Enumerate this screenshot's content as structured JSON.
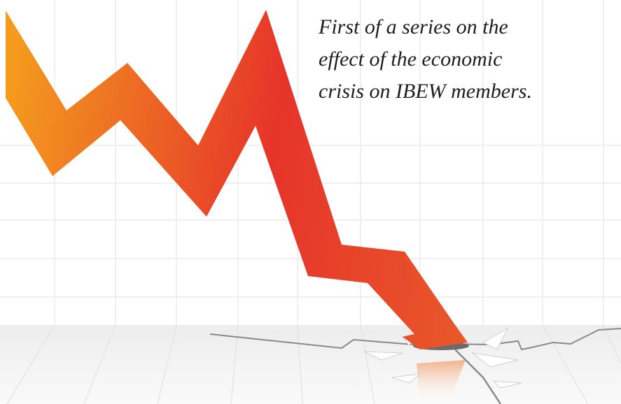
{
  "caption": {
    "lines": [
      "First of a series on the",
      "effect of the economic",
      "crisis on IBEW members."
    ]
  }
}
